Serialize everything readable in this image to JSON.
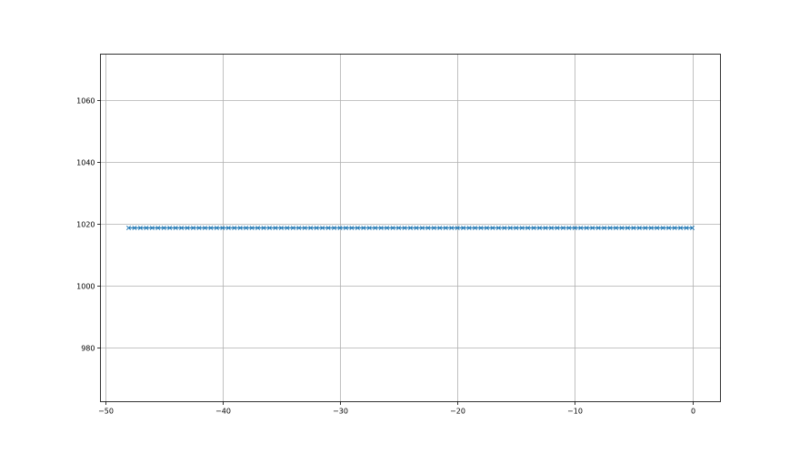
{
  "chart_data": {
    "type": "line",
    "title": "",
    "xlabel": "",
    "ylabel": "",
    "xlim": [
      -50.4,
      2.4
    ],
    "ylim": [
      962.7,
      1074.7
    ],
    "xticks": [
      -50,
      -40,
      -30,
      -20,
      -10,
      0
    ],
    "yticks": [
      980,
      1000,
      1020,
      1040,
      1060
    ],
    "grid": true,
    "marker": "x",
    "series": [
      {
        "color": "#1f77b4",
        "x_start": -48,
        "x_end": 0,
        "x_step": 0.5,
        "y_constant": 1018.7
      }
    ]
  }
}
